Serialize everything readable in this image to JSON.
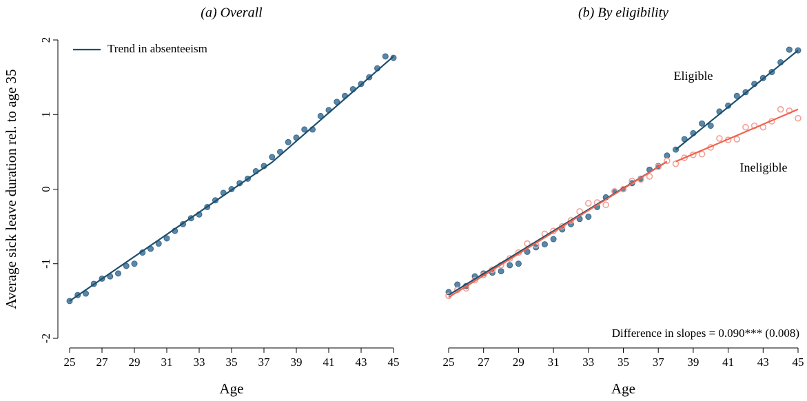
{
  "chart_data": [
    {
      "type": "scatter",
      "title": "(a) Overall",
      "xlabel": "Age",
      "ylabel": "Average sick leave duration rel. to age 35",
      "x": [
        25,
        25.5,
        26,
        26.5,
        27,
        27.5,
        28,
        28.5,
        29,
        29.5,
        30,
        30.5,
        31,
        31.5,
        32,
        32.5,
        33,
        33.5,
        34,
        34.5,
        35,
        35.5,
        36,
        36.5,
        37,
        37.5,
        38,
        38.5,
        39,
        39.5,
        40,
        40.5,
        41,
        41.5,
        42,
        42.5,
        43,
        43.5,
        44,
        44.5,
        45
      ],
      "xlim": [
        25,
        45
      ],
      "ylim": [
        -2,
        2
      ],
      "xticks": [
        25,
        27,
        29,
        31,
        33,
        35,
        37,
        39,
        41,
        43,
        45
      ],
      "yticks": [
        -2,
        -1,
        0,
        1,
        2
      ],
      "series": [
        {
          "color": "#5b88a8",
          "values": [
            -1.5,
            -1.42,
            -1.4,
            -1.27,
            -1.2,
            -1.17,
            -1.13,
            -1.03,
            -1.0,
            -0.85,
            -0.8,
            -0.73,
            -0.66,
            -0.56,
            -0.47,
            -0.39,
            -0.34,
            -0.24,
            -0.15,
            -0.05,
            0.0,
            0.08,
            0.14,
            0.24,
            0.31,
            0.43,
            0.5,
            0.63,
            0.69,
            0.8,
            0.8,
            0.98,
            1.06,
            1.17,
            1.25,
            1.34,
            1.41,
            1.5,
            1.62,
            1.78,
            1.76
          ]
        }
      ],
      "trend": {
        "name": "Trend in absenteeism",
        "color": "#1e4f6e",
        "x": [
          25,
          37.5,
          45
        ],
        "values": [
          -1.5,
          0.36,
          1.78
        ]
      },
      "legend": "upper left"
    },
    {
      "type": "scatter",
      "title": "(b) By eligibility",
      "xlabel": "Age",
      "x": [
        25,
        25.5,
        26,
        26.5,
        27,
        27.5,
        28,
        28.5,
        29,
        29.5,
        30,
        30.5,
        31,
        31.5,
        32,
        32.5,
        33,
        33.5,
        34,
        34.5,
        35,
        35.5,
        36,
        36.5,
        37,
        37.5,
        38,
        38.5,
        39,
        39.5,
        40,
        40.5,
        41,
        41.5,
        42,
        42.5,
        43,
        43.5,
        44,
        44.5,
        45
      ],
      "xlim": [
        25,
        45
      ],
      "ylim": [
        -2,
        2
      ],
      "xticks": [
        25,
        27,
        29,
        31,
        33,
        35,
        37,
        39,
        41,
        43,
        45
      ],
      "series": [
        {
          "name": "Eligible",
          "color": "#5b88a8",
          "marker": "filled",
          "values": [
            -1.38,
            -1.28,
            -1.3,
            -1.17,
            -1.13,
            -1.12,
            -1.1,
            -1.02,
            -1.0,
            -0.84,
            -0.78,
            -0.74,
            -0.67,
            -0.54,
            -0.47,
            -0.4,
            -0.37,
            -0.24,
            -0.11,
            -0.03,
            0.0,
            0.08,
            0.14,
            0.26,
            0.31,
            0.45,
            0.53,
            0.67,
            0.75,
            0.88,
            0.85,
            1.04,
            1.12,
            1.25,
            1.3,
            1.41,
            1.49,
            1.57,
            1.7,
            1.87,
            1.86
          ],
          "fit": {
            "color": "#1e4f6e",
            "x": [
              25,
              37.5,
              37.75,
              38,
              45
            ],
            "values": [
              -1.42,
              0.37,
              null,
              0.53,
              1.86
            ]
          }
        },
        {
          "name": "Ineligible",
          "color": "#f4a094",
          "marker": "hollow",
          "values": [
            -1.43,
            -1.35,
            -1.33,
            -1.22,
            -1.15,
            -1.08,
            -1.02,
            -0.93,
            -0.85,
            -0.73,
            -0.75,
            -0.6,
            -0.56,
            -0.5,
            -0.42,
            -0.3,
            -0.19,
            -0.18,
            -0.21,
            -0.03,
            0.0,
            0.11,
            0.13,
            0.17,
            0.3,
            0.38,
            0.34,
            0.42,
            0.46,
            0.47,
            0.56,
            0.68,
            0.66,
            0.67,
            0.83,
            0.85,
            0.83,
            0.91,
            1.07,
            1.05,
            0.95
          ],
          "fit": {
            "color": "#f0624d",
            "x": [
              25,
              37.5,
              37.75,
              38,
              45
            ],
            "values": [
              -1.45,
              0.37,
              null,
              0.37,
              1.07
            ]
          }
        }
      ],
      "annotation": "Difference in slopes = 0.090*** (0.008)"
    }
  ]
}
